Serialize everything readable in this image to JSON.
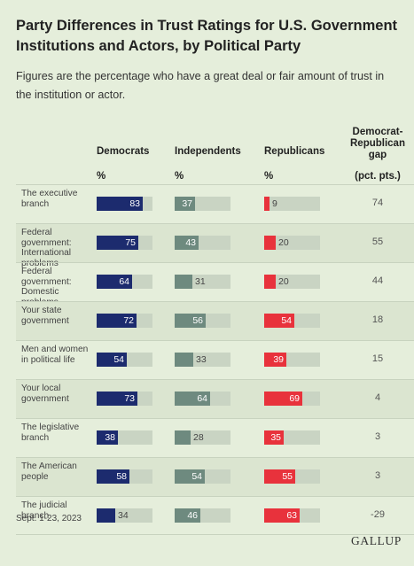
{
  "title": "Party Differences in Trust Ratings for U.S. Government Institutions and Actors, by Political Party",
  "subtitle": "Figures are the percentage who have a great deal or fair amount of trust in the institution or actor.",
  "columns": {
    "dem": "Democrats",
    "ind": "Independents",
    "rep": "Republicans",
    "gap_line1": "Democrat-",
    "gap_line2": "Republican",
    "gap_line3": "gap",
    "unit": "%",
    "gap_unit": "(pct. pts.)"
  },
  "colors": {
    "democrats": "#1c2b6e",
    "independents": "#6e8a7f",
    "republicans": "#e8323c",
    "background": "#e5eedb"
  },
  "chart_data": {
    "type": "bar",
    "categories": [
      "The executive branch",
      "Federal government: International problems",
      "Federal government: Domestic problems",
      "Your state government",
      "Men and women in political life",
      "Your local government",
      "The legislative branch",
      "The American people",
      "The judicial branch"
    ],
    "series": [
      {
        "name": "Democrats",
        "values": [
          83,
          75,
          64,
          72,
          54,
          73,
          38,
          58,
          34
        ]
      },
      {
        "name": "Independents",
        "values": [
          37,
          43,
          31,
          56,
          33,
          64,
          28,
          54,
          46
        ]
      },
      {
        "name": "Republicans",
        "values": [
          9,
          20,
          20,
          54,
          39,
          69,
          35,
          55,
          63
        ]
      }
    ],
    "gap": [
      "74",
      "55",
      "44",
      "18",
      "15",
      "4",
      "3",
      "3",
      "-29"
    ],
    "ylim": [
      0,
      100
    ]
  },
  "footnote": "Sept. 1-23, 2023",
  "logo": "GALLUP"
}
